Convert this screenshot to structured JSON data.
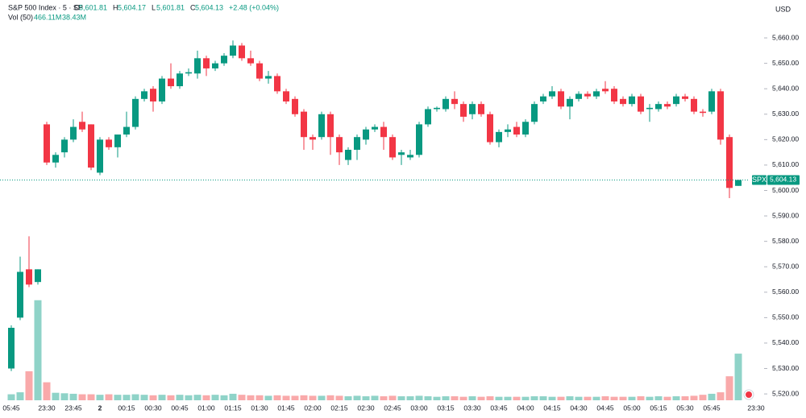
{
  "chart_data": {
    "type": "candlestick",
    "title": "S&P 500 Index · 5 · SP",
    "currency": "USD",
    "ohlc_legend": [
      {
        "label": "O",
        "value": "5,601.81"
      },
      {
        "label": "H",
        "value": "5,604.17"
      },
      {
        "label": "L",
        "value": "5,601.81"
      },
      {
        "label": "C",
        "value": "5,604.13"
      }
    ],
    "change": "+2.48 (+0.04%)",
    "volume_title": "Vol (50)",
    "volume_current": "466.11M",
    "volume_ma": "38.43M",
    "price_tag": {
      "symbol": "SPX",
      "label": "5,604.13"
    },
    "categories": [
      "05:45",
      null,
      null,
      null,
      "23:30",
      null,
      null,
      "23:45",
      null,
      null,
      "2",
      null,
      null,
      "00:15",
      null,
      null,
      "00:30",
      null,
      null,
      "00:45",
      null,
      null,
      "01:00",
      null,
      null,
      "01:15",
      null,
      null,
      "01:30",
      null,
      null,
      "01:45",
      null,
      null,
      "02:00",
      null,
      null,
      "02:15",
      null,
      null,
      "02:30",
      null,
      null,
      "02:45",
      null,
      null,
      "03:00",
      null,
      null,
      "03:15",
      null,
      null,
      "03:30",
      null,
      null,
      "03:45",
      null,
      null,
      "04:00",
      null,
      null,
      "04:15",
      null,
      null,
      "04:30",
      null,
      null,
      "04:45",
      null,
      null,
      "05:00",
      null,
      null,
      "05:15",
      null,
      null,
      "05:30",
      null,
      null,
      "05:45",
      null,
      null,
      null,
      null,
      "23:30"
    ],
    "open": [
      5530,
      5550,
      5569,
      5564,
      5626,
      5611,
      5615,
      5620,
      5627,
      5626,
      5607,
      5620,
      5617,
      5622,
      5625,
      5636,
      5640,
      5635,
      5644,
      5641,
      5646,
      5646,
      5652,
      5648,
      5650,
      5653,
      5657,
      5652,
      5650,
      5644,
      5645,
      5639,
      5636,
      5631,
      5621,
      5621,
      5630,
      5621,
      5612,
      5616,
      5620,
      5624,
      5625,
      5621,
      5614,
      5613,
      5614,
      5626,
      5632,
      5632,
      5636,
      5634,
      5630,
      5634,
      5630,
      5619,
      5623,
      5625,
      5622,
      5627,
      5635,
      5637,
      5639,
      5633,
      5636,
      5638,
      5637,
      5640,
      5640,
      5636,
      5634,
      5637,
      5632,
      5632,
      5634,
      5634,
      5637,
      5636,
      5631,
      5631,
      5639,
      5621,
      5601.81,
      null,
      null
    ],
    "high": [
      5547,
      5574,
      5582,
      5569,
      5627,
      5615,
      5621,
      5628,
      5631,
      5626,
      5621,
      5621,
      5622,
      5631,
      5637,
      5640,
      5641,
      5645,
      5650,
      5647,
      5648,
      5655,
      5653,
      5651,
      5654,
      5659,
      5658,
      5655,
      5651,
      5647,
      5646,
      5640,
      5637,
      5632,
      5622,
      5631,
      5631,
      5622,
      5617,
      5622,
      5625,
      5626,
      5627,
      5622,
      5616,
      5616,
      5627,
      5633,
      5633,
      5637,
      5639,
      5635,
      5635,
      5635,
      5631,
      5624,
      5626,
      5627,
      5628,
      5635,
      5638,
      5641,
      5640,
      5637,
      5639,
      5639,
      5640,
      5643,
      5641,
      5637,
      5638,
      5638,
      5634,
      5635,
      5635,
      5638,
      5638,
      5637,
      5632,
      5640,
      5640,
      5622,
      5604.17,
      null,
      null
    ],
    "low": [
      5529,
      5549,
      5562,
      5563,
      5610,
      5609,
      5613,
      5619,
      5623,
      5608,
      5606,
      5616,
      5613,
      5621,
      5624,
      5635,
      5631,
      5634,
      5640,
      5640,
      5645,
      5644,
      5645,
      5647,
      5649,
      5652,
      5651,
      5649,
      5643,
      5642,
      5638,
      5634,
      5629,
      5616,
      5616,
      5620,
      5614,
      5610,
      5610,
      5612,
      5618,
      5623,
      5616,
      5612,
      5610,
      5612,
      5613,
      5625,
      5631,
      5631,
      5632,
      5627,
      5628,
      5629,
      5618,
      5617,
      5621,
      5621,
      5621,
      5626,
      5634,
      5636,
      5632,
      5628,
      5635,
      5636,
      5636,
      5638,
      5634,
      5633,
      5633,
      5630,
      5627,
      5631,
      5632,
      5633,
      5635,
      5630,
      5629,
      5630,
      5618,
      5597,
      5601.81,
      null,
      null
    ],
    "close": [
      5546,
      5568,
      5563,
      5569,
      5611,
      5614,
      5620,
      5625,
      5624,
      5609,
      5620,
      5617,
      5622,
      5625,
      5636,
      5639,
      5635,
      5644,
      5641,
      5646,
      5646.5,
      5652,
      5648,
      5650,
      5653,
      5657,
      5652,
      5650,
      5644,
      5645,
      5639,
      5635,
      5630,
      5621,
      5620,
      5630,
      5621,
      5615,
      5616,
      5621,
      5624,
      5625,
      5621,
      5613,
      5615,
      5614,
      5626,
      5632,
      5632.5,
      5636,
      5634,
      5629,
      5634,
      5630,
      5619,
      5623,
      5624,
      5622,
      5627,
      5634,
      5637,
      5639,
      5633,
      5636,
      5638,
      5637,
      5639,
      5639,
      5635,
      5634,
      5637,
      5631,
      5632.5,
      5634,
      5633,
      5637,
      5636,
      5631,
      5630.5,
      5639,
      5620,
      5601,
      5604.13,
      null,
      null
    ],
    "volume": [
      60,
      80,
      290,
      1000,
      180,
      75,
      70,
      65,
      60,
      60,
      55,
      60,
      55,
      55,
      60,
      55,
      50,
      55,
      50,
      55,
      50,
      55,
      50,
      55,
      50,
      65,
      55,
      50,
      50,
      45,
      50,
      45,
      45,
      50,
      45,
      45,
      50,
      45,
      40,
      45,
      40,
      45,
      40,
      45,
      40,
      40,
      45,
      40,
      35,
      40,
      40,
      35,
      40,
      35,
      40,
      35,
      35,
      35,
      35,
      40,
      40,
      35,
      35,
      40,
      35,
      35,
      35,
      40,
      35,
      35,
      35,
      40,
      35,
      40,
      35,
      40,
      40,
      45,
      55,
      65,
      80,
      240,
      466.11,
      null,
      null
    ],
    "up_color": "#089981",
    "down_color": "#f23645",
    "volume_up_color": "#8fd3c8",
    "volume_down_color": "#f9a9aa",
    "ylim": [
      5517.5,
      5674.9
    ],
    "yticks": [
      {
        "value": 5520,
        "label": "5,520.00"
      },
      {
        "value": 5530,
        "label": "5,530.00"
      },
      {
        "value": 5540,
        "label": "5,540.00"
      },
      {
        "value": 5550,
        "label": "5,550.00"
      },
      {
        "value": 5560,
        "label": "5,560.00"
      },
      {
        "value": 5570,
        "label": "5,570.00"
      },
      {
        "value": 5580,
        "label": "5,580.00"
      },
      {
        "value": 5590,
        "label": "5,590.00"
      },
      {
        "value": 5600,
        "label": "5,600.00"
      },
      {
        "value": 5610,
        "label": "5,610.00"
      },
      {
        "value": 5620,
        "label": "5,620.00"
      },
      {
        "value": 5630,
        "label": "5,630.00"
      },
      {
        "value": 5640,
        "label": "5,640.00"
      },
      {
        "value": 5650,
        "label": "5,650.00"
      },
      {
        "value": 5660,
        "label": "5,660.00"
      }
    ],
    "vlim": [
      0,
      4000
    ],
    "last_price": 5604.13
  }
}
